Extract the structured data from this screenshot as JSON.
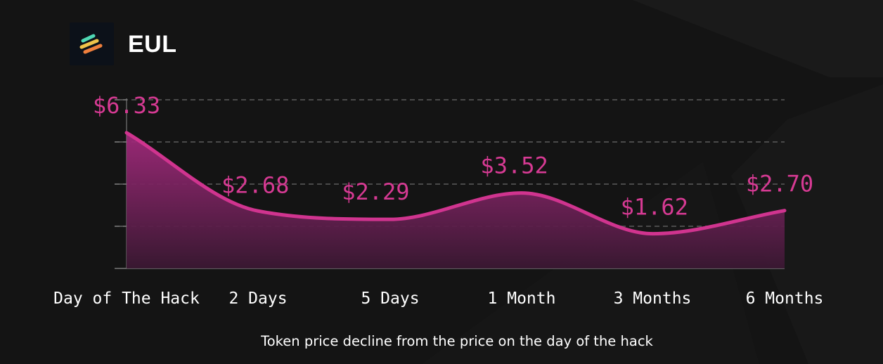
{
  "header": {
    "logo_icon": "eul-logo-icon",
    "title": "EUL"
  },
  "caption": "Token price decline from the price on the day of the hack",
  "colors": {
    "background": "#141414",
    "accent": "#d0348f",
    "label": "#d63a93",
    "tick_text": "#ffffff",
    "grid": "#4a4a4a"
  },
  "chart_data": {
    "type": "area",
    "title": "",
    "xlabel": "",
    "ylabel": "",
    "categories": [
      "Day of The Hack",
      "2 Days",
      "5 Days",
      "1 Month",
      "3 Months",
      "6 Months"
    ],
    "values": [
      6.33,
      2.68,
      2.29,
      3.52,
      1.62,
      2.7
    ],
    "data_labels": [
      "$6.33",
      "$2.68",
      "$2.29",
      "$3.52",
      "$1.62",
      "$2.70"
    ],
    "grid": true,
    "legend": "none"
  }
}
